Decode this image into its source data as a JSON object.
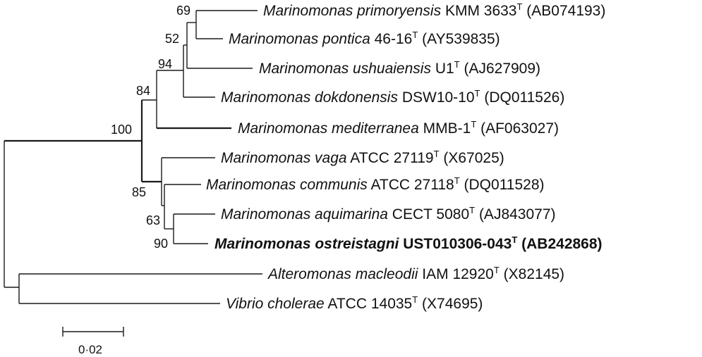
{
  "taxa": [
    {
      "species": "Marinomonas primoryensis",
      "strain": "KMM 3633",
      "type_strain_mark": "T",
      "accession": "(AB074193)",
      "emphasized": false
    },
    {
      "species": "Marinomonas pontica",
      "strain": "46-16",
      "type_strain_mark": "T",
      "accession": "(AY539835)",
      "emphasized": false
    },
    {
      "species": "Marinomonas ushuaiensis",
      "strain": "U1",
      "type_strain_mark": "T",
      "accession": "(AJ627909)",
      "emphasized": false
    },
    {
      "species": "Marinomonas dokdonensis",
      "strain": "DSW10-10",
      "type_strain_mark": "T",
      "accession": "(DQ011526)",
      "emphasized": false
    },
    {
      "species": "Marinomonas mediterranea",
      "strain": "MMB-1",
      "type_strain_mark": "T",
      "accession": "(AF063027)",
      "emphasized": false
    },
    {
      "species": "Marinomonas vaga",
      "strain": "ATCC 27119",
      "type_strain_mark": "T",
      "accession": "(X67025)",
      "emphasized": false
    },
    {
      "species": "Marinomonas communis",
      "strain": "ATCC 27118",
      "type_strain_mark": "T",
      "accession": "(DQ011528)",
      "emphasized": false
    },
    {
      "species": "Marinomonas aquimarina",
      "strain": "CECT 5080",
      "type_strain_mark": "T",
      "accession": "(AJ843077)",
      "emphasized": false
    },
    {
      "species": "Marinomonas ostreistagni",
      "strain": "UST010306-043",
      "type_strain_mark": "T",
      "accession": "(AB242868)",
      "emphasized": true
    },
    {
      "species": "Alteromonas macleodii",
      "strain": "IAM 12920",
      "type_strain_mark": "T",
      "accession": "(X82145)",
      "emphasized": false
    },
    {
      "species": "Vibrio cholerae",
      "strain": "ATCC 14035",
      "type_strain_mark": "T",
      "accession": "(X74695)",
      "emphasized": false
    }
  ],
  "bootstrap_values": [
    "69",
    "52",
    "94",
    "84",
    "100",
    "85",
    "63",
    "90"
  ],
  "scale_bar": {
    "label": "0·02",
    "value": 0.02
  }
}
